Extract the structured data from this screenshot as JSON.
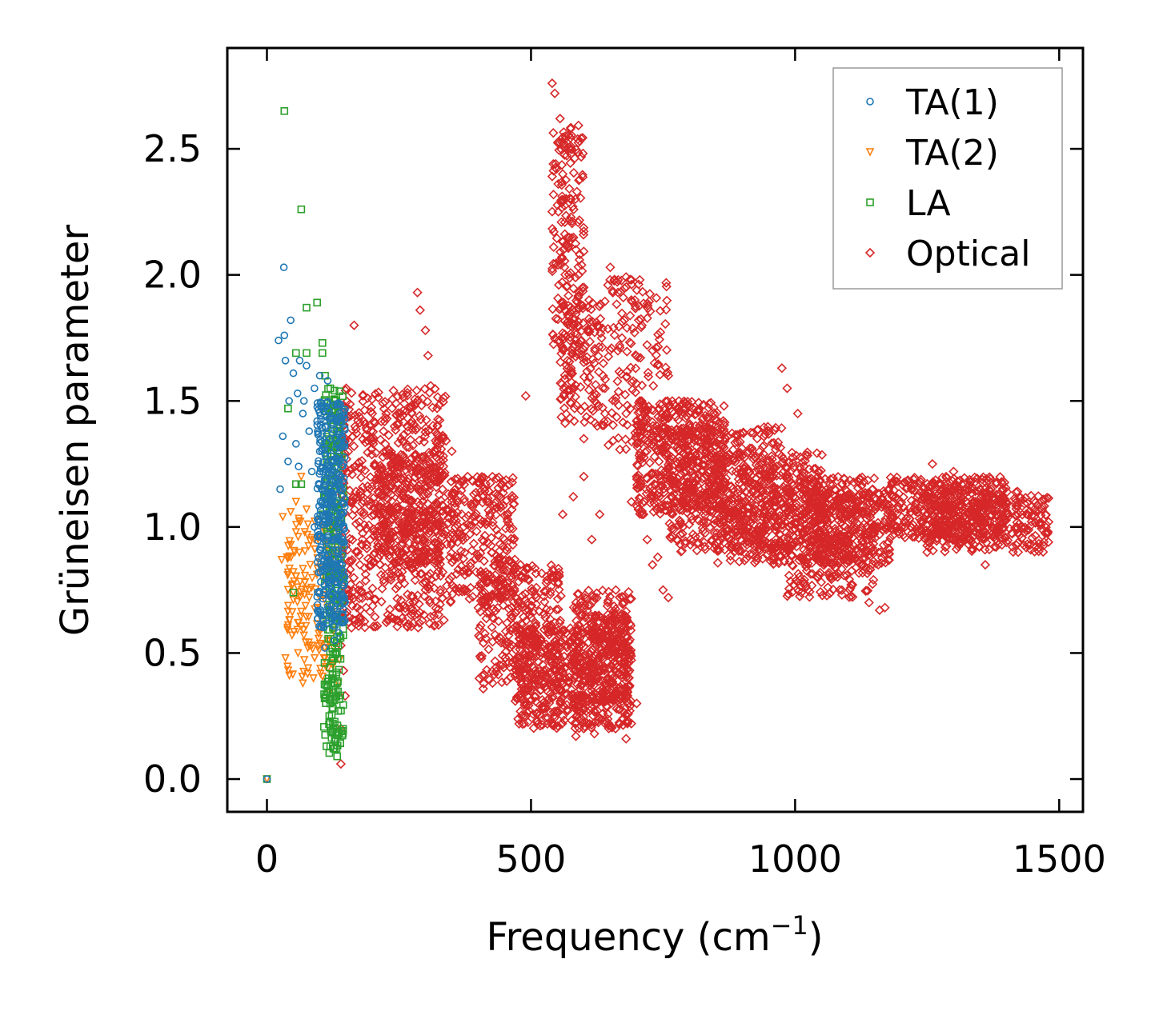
{
  "chart_data": {
    "type": "scatter",
    "title": "",
    "xlabel": "Frequency (cm",
    "xlabel_sup": "−1",
    "xlabel_close": ")",
    "ylabel": "Grüneisen parameter",
    "xlim": [
      -75,
      1545
    ],
    "ylim": [
      -0.13,
      2.9
    ],
    "xticks": [
      0,
      500,
      1000,
      1500
    ],
    "xtick_labels": [
      "0",
      "500",
      "1000",
      "1500"
    ],
    "yticks": [
      0.0,
      0.5,
      1.0,
      1.5,
      2.0,
      2.5
    ],
    "ytick_labels": [
      "0.0",
      "0.5",
      "1.0",
      "1.5",
      "2.0",
      "2.5"
    ],
    "legend_position": "top-right",
    "series": [
      {
        "name": "TA(1)",
        "marker": "circle",
        "color": "#1f77b4",
        "values": [
          [
            0,
            0
          ],
          [
            32,
            2.03
          ],
          [
            22,
            1.74
          ],
          [
            33,
            1.76
          ],
          [
            45,
            1.82
          ],
          [
            35,
            1.66
          ],
          [
            50,
            1.61
          ],
          [
            62,
            1.66
          ],
          [
            75,
            1.64
          ],
          [
            58,
            1.53
          ],
          [
            42,
            1.5
          ],
          [
            68,
            1.45
          ],
          [
            30,
            1.36
          ],
          [
            55,
            1.33
          ],
          [
            80,
            1.38
          ],
          [
            95,
            1.42
          ],
          [
            110,
            1.4
          ],
          [
            40,
            1.26
          ],
          [
            60,
            1.24
          ],
          [
            25,
            1.15
          ],
          [
            85,
            1.22
          ],
          [
            100,
            1.3
          ],
          [
            120,
            1.35
          ],
          [
            135,
            1.28
          ],
          [
            105,
            1.1
          ],
          [
            115,
            1.05
          ],
          [
            125,
            1.12
          ],
          [
            140,
            1.2
          ],
          [
            90,
            1.0
          ],
          [
            102,
            0.92
          ],
          [
            112,
            0.88
          ],
          [
            128,
            0.95
          ],
          [
            138,
            0.85
          ],
          [
            118,
            0.78
          ],
          [
            132,
            0.7
          ],
          [
            108,
            0.74
          ],
          [
            98,
            0.82
          ],
          [
            142,
            0.62
          ],
          [
            122,
            0.64
          ],
          [
            136,
            0.58
          ],
          [
            110,
            0.52
          ],
          [
            128,
            0.55
          ],
          [
            90,
            1.55
          ],
          [
            70,
            1.5
          ],
          [
            115,
            1.58
          ],
          [
            100,
            1.6
          ]
        ],
        "band": {
          "x": [
            95,
            148
          ],
          "y": [
            0.6,
            1.5
          ],
          "count": 380
        }
      },
      {
        "name": "TA(2)",
        "marker": "triangle-down",
        "color": "#ff7f0e",
        "values": [
          [
            0,
            0
          ],
          [
            30,
            1.04
          ],
          [
            38,
            0.88
          ],
          [
            28,
            0.87
          ],
          [
            45,
            0.93
          ],
          [
            55,
            0.98
          ],
          [
            40,
            0.82
          ],
          [
            50,
            0.74
          ],
          [
            35,
            0.48
          ],
          [
            60,
            0.62
          ],
          [
            70,
            0.57
          ],
          [
            68,
            0.38
          ],
          [
            78,
            0.44
          ],
          [
            85,
            0.53
          ],
          [
            62,
            0.72
          ],
          [
            72,
            0.78
          ],
          [
            82,
            0.85
          ],
          [
            95,
            0.68
          ],
          [
            105,
            0.6
          ],
          [
            115,
            0.55
          ],
          [
            125,
            0.45
          ],
          [
            135,
            0.38
          ],
          [
            90,
            0.95
          ],
          [
            100,
            0.72
          ],
          [
            110,
            0.8
          ],
          [
            120,
            0.72
          ],
          [
            130,
            0.62
          ],
          [
            45,
            1.06
          ],
          [
            55,
            1.1
          ],
          [
            65,
            1.2
          ],
          [
            75,
            1.07
          ],
          [
            88,
            0.4
          ],
          [
            118,
            0.34
          ],
          [
            108,
            0.48
          ]
        ],
        "band": {
          "x": [
            38,
            138
          ],
          "y": [
            0.4,
            1.05
          ],
          "count": 140
        }
      },
      {
        "name": "LA",
        "marker": "square",
        "color": "#2ca02c",
        "values": [
          [
            0,
            0
          ],
          [
            33,
            2.65
          ],
          [
            65,
            2.26
          ],
          [
            75,
            1.87
          ],
          [
            95,
            1.89
          ],
          [
            75,
            1.69
          ],
          [
            55,
            1.69
          ],
          [
            105,
            1.73
          ],
          [
            105,
            1.69
          ],
          [
            110,
            1.6
          ],
          [
            120,
            1.55
          ],
          [
            130,
            1.5
          ],
          [
            40,
            1.47
          ],
          [
            55,
            1.17
          ],
          [
            65,
            1.17
          ],
          [
            50,
            0.74
          ],
          [
            105,
            1.05
          ],
          [
            115,
            1.12
          ],
          [
            125,
            1.0
          ],
          [
            135,
            0.95
          ],
          [
            120,
            0.85
          ],
          [
            128,
            0.78
          ],
          [
            135,
            0.7
          ],
          [
            125,
            0.6
          ],
          [
            130,
            0.5
          ],
          [
            125,
            0.4
          ],
          [
            120,
            0.3
          ],
          [
            125,
            0.22
          ],
          [
            130,
            0.15
          ],
          [
            133,
            0.09
          ],
          [
            128,
            0.12
          ],
          [
            118,
            0.25
          ],
          [
            115,
            0.35
          ]
        ],
        "band": {
          "x": [
            108,
            145
          ],
          "y": [
            0.1,
            1.55
          ],
          "count": 260
        }
      },
      {
        "name": "Optical",
        "marker": "diamond",
        "color": "#d62728",
        "values": [
          [
            540,
            2.76
          ],
          [
            545,
            2.72
          ],
          [
            555,
            2.62
          ],
          [
            565,
            2.55
          ],
          [
            560,
            2.4
          ],
          [
            575,
            2.3
          ],
          [
            570,
            2.15
          ],
          [
            585,
            2.1
          ],
          [
            590,
            2.0
          ],
          [
            600,
            1.95
          ],
          [
            610,
            1.9
          ],
          [
            580,
            1.8
          ],
          [
            595,
            1.7
          ],
          [
            620,
            1.65
          ],
          [
            640,
            1.55
          ],
          [
            660,
            1.5
          ],
          [
            680,
            1.45
          ],
          [
            700,
            1.42
          ],
          [
            650,
            2.03
          ],
          [
            665,
            1.98
          ],
          [
            690,
            1.9
          ],
          [
            710,
            1.8
          ],
          [
            730,
            1.7
          ],
          [
            760,
            1.6
          ],
          [
            780,
            1.5
          ],
          [
            800,
            1.45
          ],
          [
            285,
            1.93
          ],
          [
            290,
            1.86
          ],
          [
            300,
            1.78
          ],
          [
            305,
            1.68
          ],
          [
            310,
            1.56
          ],
          [
            490,
            1.52
          ],
          [
            165,
            1.8
          ],
          [
            150,
            1.55
          ],
          [
            975,
            1.63
          ],
          [
            985,
            1.55
          ],
          [
            1005,
            1.45
          ],
          [
            160,
            0.6
          ],
          [
            140,
            0.53
          ],
          [
            145,
            0.43
          ],
          [
            148,
            0.33
          ],
          [
            140,
            0.2
          ],
          [
            140,
            0.06
          ],
          [
            155,
            0.75
          ],
          [
            585,
            0.17
          ],
          [
            600,
            0.2
          ],
          [
            620,
            0.18
          ],
          [
            640,
            0.22
          ],
          [
            660,
            0.2
          ],
          [
            680,
            0.16
          ],
          [
            690,
            0.22
          ],
          [
            700,
            0.3
          ],
          [
            560,
            0.25
          ],
          [
            540,
            0.32
          ],
          [
            520,
            0.42
          ],
          [
            500,
            0.52
          ],
          [
            690,
            1.1
          ],
          [
            700,
            1.2
          ],
          [
            710,
            1.05
          ],
          [
            720,
            0.95
          ],
          [
            730,
            0.85
          ],
          [
            740,
            0.88
          ],
          [
            750,
            0.75
          ],
          [
            760,
            0.72
          ],
          [
            1140,
            0.7
          ],
          [
            1160,
            0.67
          ],
          [
            1170,
            0.68
          ],
          [
            1260,
            1.25
          ],
          [
            1300,
            1.22
          ],
          [
            1350,
            1.15
          ],
          [
            1400,
            1.1
          ],
          [
            1440,
            1.05
          ],
          [
            1475,
            1.01
          ],
          [
            1480,
            1.02
          ],
          [
            1420,
            1.0
          ],
          [
            1360,
            0.85
          ],
          [
            1380,
            0.95
          ],
          [
            1300,
            0.95
          ],
          [
            1250,
            0.9
          ],
          [
            270,
            0.7
          ],
          [
            280,
            0.65
          ],
          [
            300,
            0.75
          ],
          [
            310,
            0.9
          ],
          [
            320,
            1.05
          ],
          [
            350,
            1.3
          ],
          [
            380,
            1.2
          ],
          [
            420,
            1.1
          ],
          [
            450,
            0.95
          ],
          [
            480,
            0.85
          ],
          [
            510,
            0.72
          ],
          [
            545,
            0.62
          ],
          [
            575,
            0.55
          ],
          [
            615,
            0.95
          ],
          [
            630,
            1.05
          ],
          [
            600,
            1.2
          ],
          [
            580,
            1.12
          ],
          [
            560,
            1.05
          ],
          [
            600,
            1.35
          ],
          [
            620,
            1.5
          ],
          [
            640,
            1.45
          ]
        ],
        "bands": [
          {
            "x": [
              140,
              340
            ],
            "y": [
              0.6,
              1.55
            ],
            "count": 650
          },
          {
            "x": [
              200,
              330
            ],
            "y": [
              0.85,
              1.3
            ],
            "count": 300
          },
          {
            "x": [
              340,
              470
            ],
            "y": [
              0.7,
              1.2
            ],
            "count": 280
          },
          {
            "x": [
              400,
              560
            ],
            "y": [
              0.35,
              0.85
            ],
            "count": 320
          },
          {
            "x": [
              470,
              600
            ],
            "y": [
              0.2,
              0.6
            ],
            "count": 300
          },
          {
            "x": [
              580,
              690
            ],
            "y": [
              0.2,
              0.75
            ],
            "count": 340
          },
          {
            "x": [
              610,
              690
            ],
            "y": [
              0.3,
              0.65
            ],
            "count": 200
          },
          {
            "x": [
              700,
              870
            ],
            "y": [
              1.05,
              1.5
            ],
            "count": 450
          },
          {
            "x": [
              760,
              980
            ],
            "y": [
              0.9,
              1.4
            ],
            "count": 450
          },
          {
            "x": [
              850,
              1060
            ],
            "y": [
              0.85,
              1.3
            ],
            "count": 420
          },
          {
            "x": [
              980,
              1150
            ],
            "y": [
              0.72,
              1.2
            ],
            "count": 380
          },
          {
            "x": [
              1040,
              1180
            ],
            "y": [
              0.85,
              1.15
            ],
            "count": 260
          },
          {
            "x": [
              1180,
              1400
            ],
            "y": [
              0.95,
              1.2
            ],
            "count": 380
          },
          {
            "x": [
              1240,
              1480
            ],
            "y": [
              0.9,
              1.15
            ],
            "count": 350
          },
          {
            "x": [
              540,
              600
            ],
            "y": [
              1.7,
              2.6
            ],
            "count": 180
          },
          {
            "x": [
              555,
              640
            ],
            "y": [
              1.4,
              1.9
            ],
            "count": 140
          },
          {
            "x": [
              640,
              760
            ],
            "y": [
              1.3,
              2.0
            ],
            "count": 160
          }
        ]
      }
    ]
  }
}
